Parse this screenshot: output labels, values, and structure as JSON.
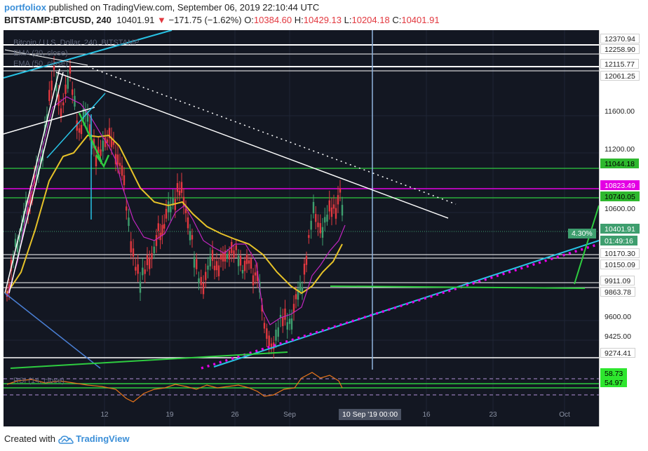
{
  "header": {
    "author": "portfoliox",
    "published_text": "published on TradingView.com, September 06, 2019 22:10:44 UTC",
    "symbol": "BITSTAMP:BTCUSD, 240",
    "last": "10401.91",
    "change": "−171.75 (−1.62%)",
    "o_label": "O:",
    "o_value": "10384.60",
    "h_label": "H:",
    "h_value": "10429.13",
    "l_label": "L:",
    "l_value": "10204.18",
    "c_label": "C:",
    "c_value": "10401.91"
  },
  "legends": {
    "title": "Bitcoin / U.S. Dollar, 240, BITSTAMP",
    "ema1": "EMA (20, close)",
    "ema2": "EMA (50, close)",
    "rsi": "RSI (14, close)"
  },
  "price_axis": [
    {
      "label": "12370.94",
      "style": "white"
    },
    {
      "label": "12258.90",
      "style": "white"
    },
    {
      "label": "12115.77",
      "style": "white"
    },
    {
      "label": "12061.25",
      "style": "white"
    },
    {
      "label": "11600.00",
      "style": "plain"
    },
    {
      "label": "11200.00",
      "style": "plain"
    },
    {
      "label": "11044.18",
      "style": "green"
    },
    {
      "label": "10823.49",
      "style": "magenta"
    },
    {
      "label": "10740.05",
      "style": "green"
    },
    {
      "label": "10600.00",
      "style": "plain"
    },
    {
      "label": "10401.91",
      "style": "cur"
    },
    {
      "label": "01:49:16",
      "style": "cur"
    },
    {
      "label": "10170.30",
      "style": "white"
    },
    {
      "label": "10150.09",
      "style": "white"
    },
    {
      "label": "9911.09",
      "style": "white"
    },
    {
      "label": "9863.78",
      "style": "white"
    },
    {
      "label": "9600.00",
      "style": "plain"
    },
    {
      "label": "9425.00",
      "style": "plain"
    },
    {
      "label": "9274.41",
      "style": "white"
    },
    {
      "label": "58.73",
      "style": "lime"
    },
    {
      "label": "54.97",
      "style": "lime"
    }
  ],
  "percent_label": "4.30%",
  "time_axis": [
    "12",
    "19",
    "26",
    "Sep",
    "16",
    "23",
    "Oct"
  ],
  "crosshair_time": "10 Sep '19   00:00",
  "footer": {
    "created_with": "Created with",
    "brand": "TradingView"
  },
  "colors": {
    "background": "#131722",
    "candle_up": "#3e9e6e",
    "candle_down": "#e2383f",
    "ema_fast": "#c026c0",
    "ema_slow": "#e6c229",
    "trend_cyan": "#28c4e6",
    "support_magenta_dotted": "#e400e4",
    "level_green": "#2ecc40",
    "level_white": "#ffffff"
  }
}
